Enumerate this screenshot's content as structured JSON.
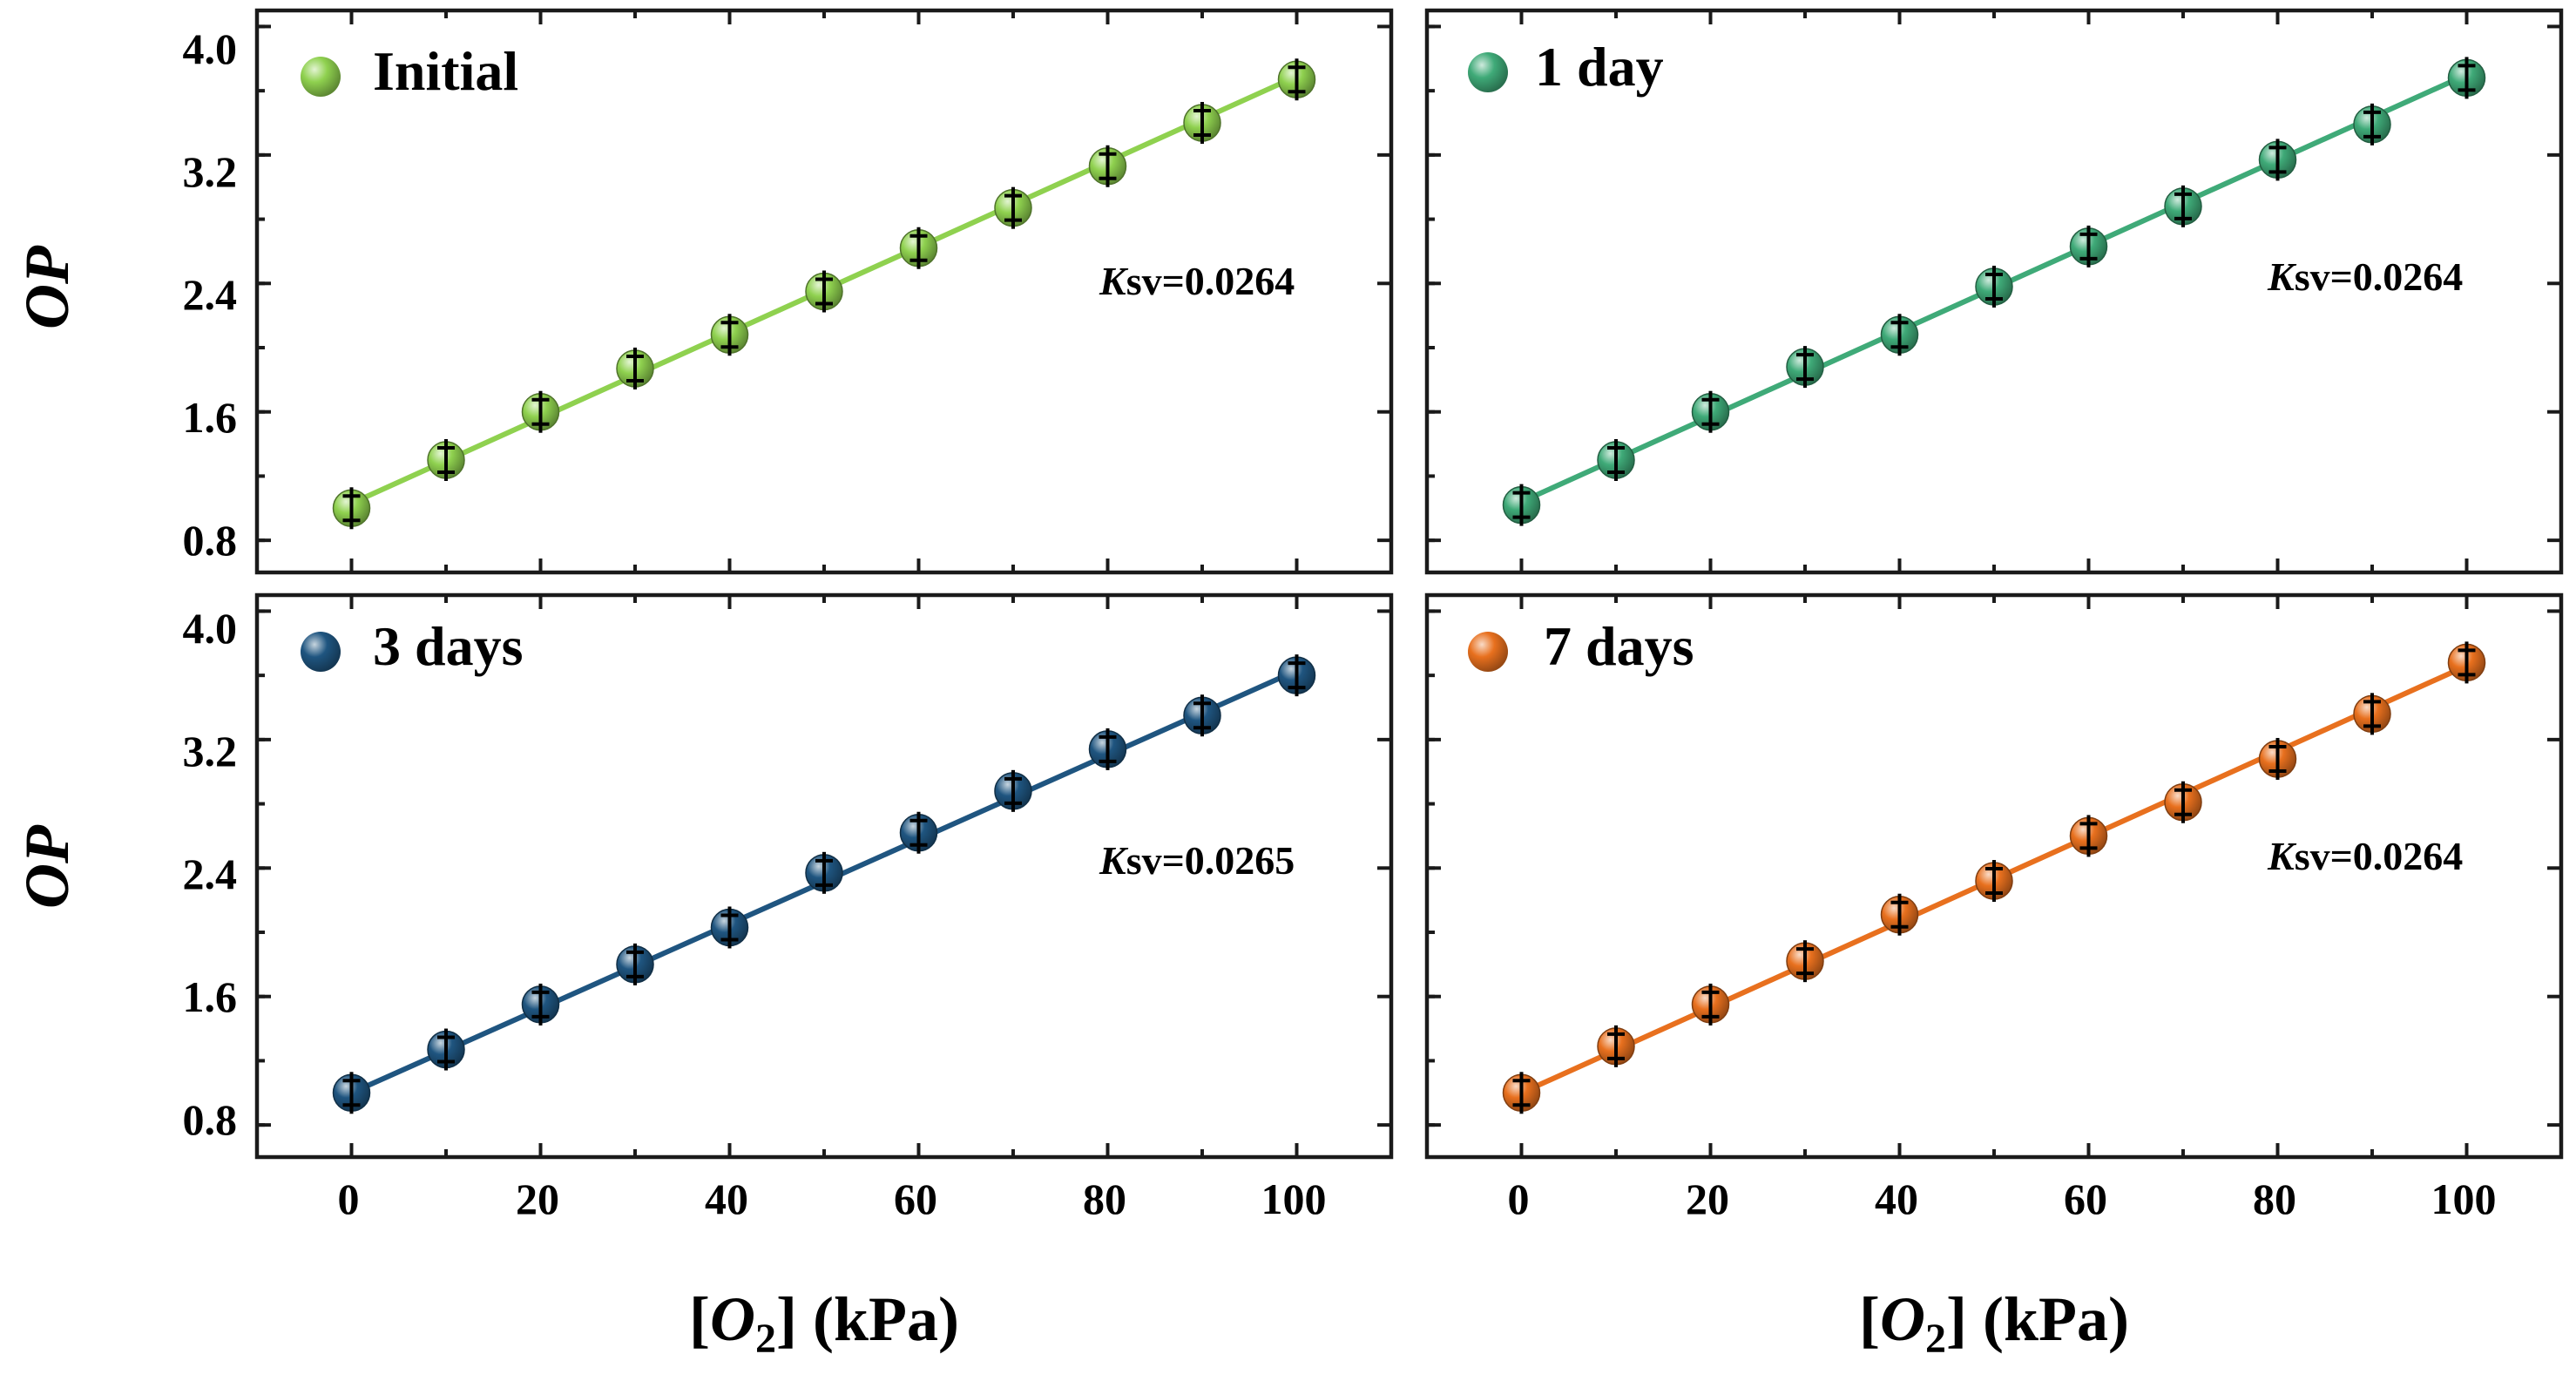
{
  "chart_data": [
    {
      "type": "scatter",
      "legend": "Initial",
      "color": "#8fd14f",
      "ksv_prefix": "K",
      "ksv_suffix": "sv=0.0264",
      "x": [
        0,
        10,
        20,
        30,
        40,
        50,
        60,
        70,
        80,
        90,
        100
      ],
      "y": [
        1.0,
        1.3,
        1.6,
        1.87,
        2.08,
        2.35,
        2.62,
        2.87,
        3.13,
        3.4,
        3.67
      ],
      "fit": {
        "x": [
          0,
          100
        ],
        "y": [
          1.03,
          3.69
        ]
      },
      "xlim": [
        -10,
        110
      ],
      "ylim": [
        0.6,
        4.1
      ],
      "yticks": [
        "0.8",
        "1.6",
        "2.4",
        "3.2",
        "4.0"
      ]
    },
    {
      "type": "scatter",
      "legend": "1 day",
      "color": "#3faa78",
      "ksv_prefix": "K",
      "ksv_suffix": "sv=0.0264",
      "x": [
        0,
        10,
        20,
        30,
        40,
        50,
        60,
        70,
        80,
        90,
        100
      ],
      "y": [
        1.02,
        1.3,
        1.6,
        1.88,
        2.08,
        2.38,
        2.63,
        2.88,
        3.17,
        3.39,
        3.68
      ],
      "fit": {
        "x": [
          0,
          100
        ],
        "y": [
          1.04,
          3.7
        ]
      },
      "xlim": [
        -10,
        110
      ],
      "ylim": [
        0.6,
        4.1
      ],
      "yticks": [
        "0.8",
        "1.6",
        "2.4",
        "3.2",
        "4.0"
      ]
    },
    {
      "type": "scatter",
      "legend": "3 days",
      "color": "#1f5580",
      "ksv_prefix": "K",
      "ksv_suffix": "sv=0.0265",
      "x": [
        0,
        10,
        20,
        30,
        40,
        50,
        60,
        70,
        80,
        90,
        100
      ],
      "y": [
        1.0,
        1.27,
        1.55,
        1.8,
        2.03,
        2.37,
        2.62,
        2.88,
        3.14,
        3.35,
        3.6
      ],
      "fit": {
        "x": [
          0,
          100
        ],
        "y": [
          1.0,
          3.63
        ]
      },
      "xlim": [
        -10,
        110
      ],
      "ylim": [
        0.6,
        4.1
      ],
      "yticks": [
        "0.8",
        "1.6",
        "2.4",
        "3.2",
        "4.0"
      ],
      "xticks": [
        "0",
        "20",
        "40",
        "60",
        "80",
        "100"
      ]
    },
    {
      "type": "scatter",
      "legend": "7 days",
      "color": "#e8701e",
      "ksv_prefix": "K",
      "ksv_suffix": "sv=0.0264",
      "x": [
        0,
        10,
        20,
        30,
        40,
        50,
        60,
        70,
        80,
        90,
        100
      ],
      "y": [
        1.0,
        1.29,
        1.55,
        1.82,
        2.11,
        2.32,
        2.6,
        2.81,
        3.08,
        3.36,
        3.68
      ],
      "fit": {
        "x": [
          0,
          100
        ],
        "y": [
          1.0,
          3.66
        ]
      },
      "xlim": [
        -10,
        110
      ],
      "ylim": [
        0.6,
        4.1
      ],
      "yticks": [
        "0.8",
        "1.6",
        "2.4",
        "3.2",
        "4.0"
      ],
      "xticks": [
        "0",
        "20",
        "40",
        "60",
        "80",
        "100"
      ]
    }
  ],
  "axes": {
    "ylabel": "OP",
    "xlabel_open": "[",
    "xlabel_species": "O",
    "xlabel_subscript": "2",
    "xlabel_close": "]",
    "xlabel_unit": " (kPa)"
  }
}
